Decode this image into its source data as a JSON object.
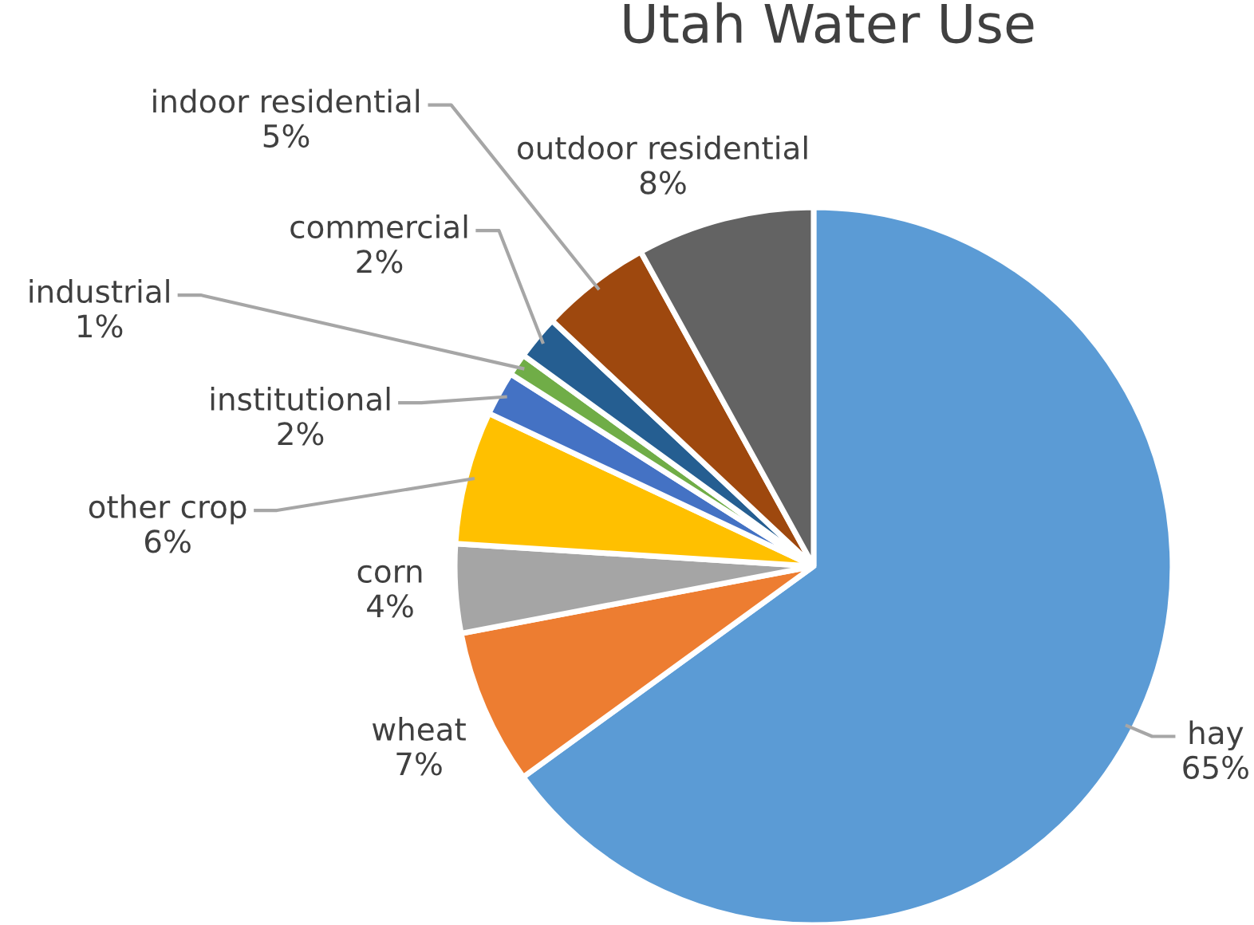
{
  "chart_data": {
    "type": "pie",
    "title": "Utah Water Use",
    "categories": [
      "hay",
      "wheat",
      "corn",
      "other crop",
      "institutional",
      "industrial",
      "commercial",
      "indoor residential",
      "outdoor residential"
    ],
    "values": [
      65,
      7,
      4,
      6,
      2,
      1,
      2,
      5,
      8
    ],
    "value_labels": [
      "65%",
      "7%",
      "4%",
      "6%",
      "2%",
      "1%",
      "2%",
      "5%",
      "8%"
    ],
    "colors": [
      "#5b9bd5",
      "#ed7d31",
      "#a5a5a5",
      "#ffc000",
      "#4472c4",
      "#70ad47",
      "#255e91",
      "#9e480e",
      "#636363"
    ],
    "legend": false
  }
}
